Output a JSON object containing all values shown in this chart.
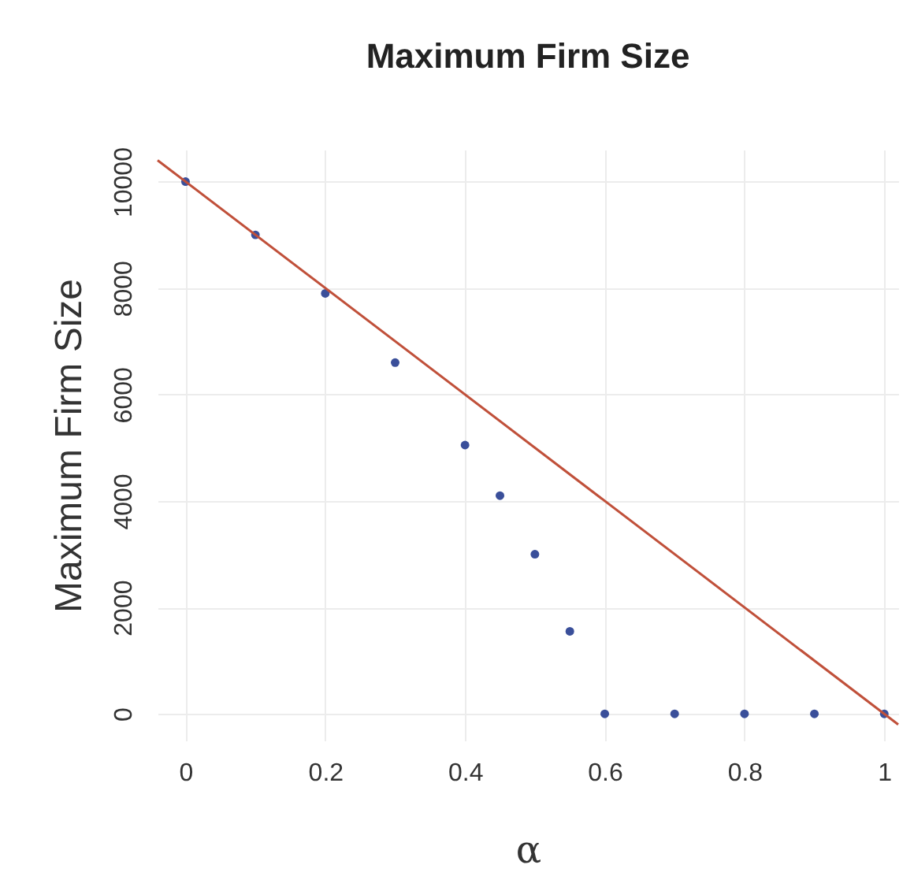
{
  "chart_data": {
    "type": "scatter",
    "title": "Maximum Firm Size",
    "xlabel": "α",
    "ylabel": "Maximum Firm Size",
    "x": [
      0,
      0.1,
      0.2,
      0.3,
      0.4,
      0.45,
      0.5,
      0.55,
      0.6,
      0.7,
      0.8,
      0.9,
      1
    ],
    "series": [
      {
        "color": "#3a4f9a",
        "marker": "circle",
        "values": [
          10000,
          9000,
          7900,
          6600,
          5050,
          4100,
          3000,
          1550,
          0,
          0,
          0,
          0,
          0
        ]
      },
      {
        "type": "line",
        "color": "#c0503a",
        "x": [
          -0.04,
          1.02
        ],
        "values": [
          10400,
          -200
        ]
      }
    ],
    "xlim": [
      -0.04,
      1.02
    ],
    "ylim": [
      -500,
      10600
    ],
    "xticks": [
      0,
      0.2,
      0.4,
      0.6,
      0.8,
      1
    ],
    "yticks": [
      0,
      2000,
      4000,
      6000,
      8000,
      10000
    ],
    "grid": true
  }
}
